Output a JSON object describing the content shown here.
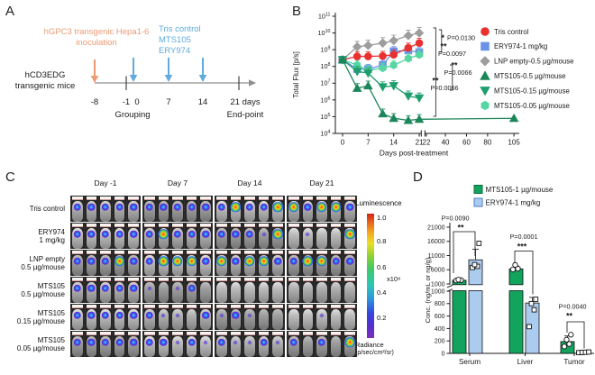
{
  "figure": {
    "panel_labels": {
      "a": "A",
      "b": "B",
      "c": "C",
      "d": "D"
    },
    "background": "#ffffff"
  },
  "panel_a": {
    "inoculation_lines": [
      "hGPC3 transgenic Hepa1-6",
      "inoculation"
    ],
    "treatment_lines": [
      "Tris control",
      "MTS105",
      "ERY974"
    ],
    "mice_lines": [
      "hCD3EDG",
      "transgenic mice"
    ],
    "timeline_tick_labels": [
      "-8",
      "-1",
      "0",
      "7",
      "14",
      "21 days"
    ],
    "grouping_label": "Grouping",
    "endpoint_label": "End-point",
    "colors": {
      "inoculation": "#EC9A74",
      "treatment": "#5FAADF",
      "timeline": "#8F8F8F",
      "text": "#1A1A1A"
    }
  },
  "chart_data": [
    {
      "panel": "B",
      "type": "line",
      "xlabel": "Days post-treatment",
      "ylabel": "Total Flux [p/s]",
      "yscale": "log",
      "ylim": [
        10000.0,
        100000000000.0
      ],
      "y_tick_exponents": [
        4,
        5,
        6,
        7,
        8,
        9,
        10,
        11
      ],
      "x_tick_labels": [
        0,
        7,
        14,
        21,
        22,
        40,
        60,
        80,
        105
      ],
      "axis_break_between": [
        21,
        22
      ],
      "x": [
        0,
        4,
        7,
        11,
        14,
        18,
        21
      ],
      "series": [
        {
          "name": "Tris control",
          "marker": "circle",
          "color": "#E8312E",
          "err_up_factor": 1.9,
          "values": [
            250000000.0,
            400000000.0,
            400000000.0,
            420000000.0,
            500000000.0,
            1300000000.0,
            2500000000.0
          ]
        },
        {
          "name": "ERY974-1 mg/kg",
          "marker": "square",
          "color": "#6A93E8",
          "err_up_factor": 1.9,
          "values": [
            250000000.0,
            70000000.0,
            70000000.0,
            120000000.0,
            800000000.0,
            900000000.0,
            700000000.0
          ]
        },
        {
          "name": "LNP empty-0.5 µg/mouse",
          "marker": "diamond",
          "color": "#9D9D9D",
          "err_up_factor": 2.1,
          "values": [
            250000000.0,
            1500000000.0,
            1800000000.0,
            2500000000.0,
            3500000000.0,
            7000000000.0,
            10000000000.0
          ]
        },
        {
          "name": "MTS105-0.5 µg/mouse",
          "marker": "triangle-up",
          "color": "#1B8659",
          "err_up_factor": 1.9,
          "values": [
            250000000.0,
            5000000.0,
            7000000.0,
            150000.0,
            80000.0,
            60000.0,
            70000.0
          ]
        },
        {
          "name": "MTS105-0.15 µg/mouse",
          "marker": "triangle-down",
          "color": "#1E9E6C",
          "err_up_factor": 2.0,
          "values": [
            250000000.0,
            50000000.0,
            40000000.0,
            6000000.0,
            7000000.0,
            1700000.0,
            1300000.0
          ]
        },
        {
          "name": "MTS105-0.05 µg/mouse",
          "marker": "hexagon",
          "color": "#55D6A2",
          "err_up_factor": 1.9,
          "values": [
            250000000.0,
            120000000.0,
            60000000.0,
            80000000.0,
            120000000.0,
            300000000.0,
            500000000.0
          ]
        }
      ],
      "long_term_point": {
        "series_index": 3,
        "x": 105,
        "value": 80000.0
      },
      "annotations": [
        {
          "stars": "*",
          "star_color": "#4FA8D8",
          "p_label": "P=0.0130"
        },
        {
          "stars": "**",
          "star_color": "#21A06C",
          "p_label": "P=0.0097"
        },
        {
          "stars": "**",
          "star_color": "#21A06C",
          "p_label": "P=0.0066"
        },
        {
          "stars": "**",
          "star_color": "#21A06C",
          "p_label": "P=0.0066"
        }
      ]
    },
    {
      "panel": "D",
      "type": "bar",
      "ylabel": "Conc. (ng/mL or ng/g)",
      "categories": [
        "Serum",
        "Liver",
        "Tumor"
      ],
      "y_axis_upper_ticks": [
        1000,
        6000,
        11000,
        16000,
        21000
      ],
      "y_axis_lower_ticks": [
        0,
        200,
        400,
        600,
        800,
        1000
      ],
      "axis_break_value": 1000,
      "series": [
        {
          "name": "MTS105-1 µg/mouse",
          "color": "#12A45D",
          "border_color": "#0B6B3E",
          "marker": "circle",
          "values": [
            2300,
            6300,
            190
          ],
          "errors_high": [
            2600,
            7300,
            280
          ],
          "points": [
            [
              2200,
              2350,
              2500
            ],
            [
              6100,
              6400,
              7700
            ],
            [
              110,
              150,
              220,
              300
            ]
          ]
        },
        {
          "name": "ERY974-1 mg/kg",
          "color": "#ABCBEF",
          "border_color": "#4A7CC8",
          "marker": "square",
          "values": [
            9500,
            810,
            25
          ],
          "errors_high": [
            13200,
            900,
            30
          ],
          "points": [
            [
              6800,
              7200,
              7800,
              15300
            ],
            [
              430,
              700,
              800,
              870
            ],
            [
              12,
              15,
              18,
              22
            ]
          ]
        }
      ],
      "annotations": [
        {
          "category": "Serum",
          "stars": "**",
          "p_label": "P=0.0090"
        },
        {
          "category": "Liver",
          "stars": "***",
          "p_label": "P=0.0001"
        },
        {
          "category": "Tumor",
          "stars": "**",
          "p_label": "P=0.0040"
        }
      ]
    }
  ],
  "panel_c": {
    "day_headers": [
      "Day -1",
      "Day 7",
      "Day 14",
      "Day 21"
    ],
    "rows": [
      {
        "label_lines": [
          "Tris control"
        ],
        "spot_levels": [
          [
            2,
            2,
            2,
            2,
            2
          ],
          [
            2,
            2,
            2,
            2,
            2
          ],
          [
            2,
            3,
            2,
            2,
            3
          ],
          [
            3,
            2,
            3,
            3,
            2
          ]
        ]
      },
      {
        "label_lines": [
          "ERY974",
          "1 mg/kg"
        ],
        "spot_levels": [
          [
            2,
            2,
            2,
            2,
            2
          ],
          [
            2,
            3,
            2,
            2,
            2
          ],
          [
            2,
            2,
            2,
            1,
            3
          ],
          [
            0,
            1,
            0,
            0,
            3
          ]
        ]
      },
      {
        "label_lines": [
          "LNP empty",
          "0.5 µg/mouse"
        ],
        "spot_levels": [
          [
            2,
            2,
            2,
            3,
            2
          ],
          [
            2,
            3,
            3,
            3,
            2
          ],
          [
            3,
            2,
            3,
            3,
            2
          ],
          [
            2,
            3,
            3,
            2,
            2
          ]
        ]
      },
      {
        "label_lines": [
          "MTS105",
          "0.5 µg/mouse"
        ],
        "spot_levels": [
          [
            2,
            2,
            2,
            2,
            2
          ],
          [
            1,
            0,
            1,
            2,
            0
          ],
          [
            0,
            0,
            0,
            0,
            0
          ],
          [
            0,
            0,
            0,
            0,
            0
          ]
        ]
      },
      {
        "label_lines": [
          "MTS105",
          "0.15 µg/mouse"
        ],
        "spot_levels": [
          [
            2,
            2,
            2,
            2,
            2
          ],
          [
            2,
            1,
            1,
            0,
            2
          ],
          [
            1,
            2,
            1,
            0,
            0
          ],
          [
            0,
            0,
            1,
            0,
            0
          ]
        ]
      },
      {
        "label_lines": [
          "MTS105",
          "0.05 µg/mouse"
        ],
        "spot_levels": [
          [
            2,
            2,
            2,
            2,
            2
          ],
          [
            2,
            2,
            1,
            2,
            1
          ],
          [
            2,
            1,
            1,
            2,
            1
          ],
          [
            2,
            0,
            2,
            0,
            3
          ]
        ]
      }
    ],
    "colorbar": {
      "title": "Luminescence",
      "tick_labels": [
        "1.0",
        "0.8",
        "0.6",
        "0.4",
        "0.2"
      ],
      "multiplier": "x10⁸",
      "unit_lines": [
        "Radiance",
        "(p/sec/cm²/sr)"
      ]
    }
  }
}
